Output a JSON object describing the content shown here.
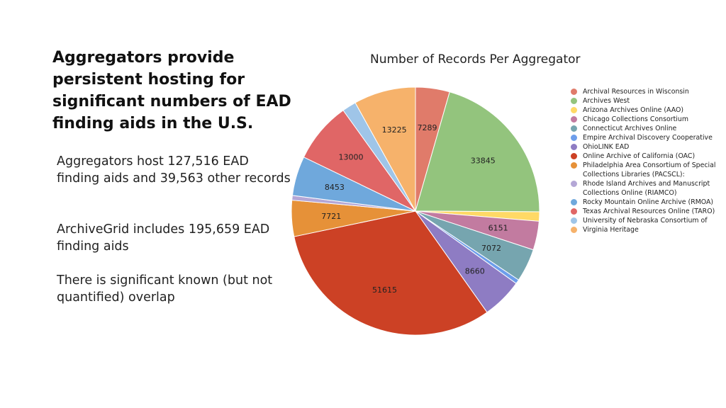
{
  "slide": {
    "title": "Aggregators provide persistent hosting for significant numbers of EAD finding aids in the U.S.",
    "paragraphs": [
      "Aggregators host 127,516 EAD finding aids and 39,563 other records",
      "ArchiveGrid includes 195,659 EAD finding aids",
      "There is significant known (but not quantified) overlap"
    ]
  },
  "chart_data": {
    "type": "pie",
    "title": "Number of Records Per Aggregator",
    "start_angle_deg": 0,
    "direction": "clockwise",
    "legend_position": "right",
    "slices": [
      {
        "label": "Archival Resources in Wisconsin",
        "value": 7289,
        "color": "#e07b6a"
      },
      {
        "label": "Archives West",
        "value": 33845,
        "color": "#93c47d"
      },
      {
        "label": "Arizona Archives Online (AAO)",
        "value": 2000,
        "color": "#ffd966"
      },
      {
        "label": "Chicago Collections Consortium",
        "value": 6151,
        "color": "#c27ba0"
      },
      {
        "label": "Connecticut Archives Online",
        "value": 7072,
        "color": "#76a5af"
      },
      {
        "label": "Empire Archival Discovery Cooperative",
        "value": 900,
        "color": "#6d9eeb"
      },
      {
        "label": "OhioLINK EAD",
        "value": 8660,
        "color": "#8e7cc3"
      },
      {
        "label": "Online Archive of California (OAC)",
        "value": 51615,
        "color": "#cc4125"
      },
      {
        "label": "Philadelphia Area Consortium of Special Collections Libraries (PACSCL):",
        "value": 7721,
        "color": "#e69138"
      },
      {
        "label": "Rhode Island Archives and Manuscript Collections Online (RIAMCO)",
        "value": 1000,
        "color": "#b4a7d6"
      },
      {
        "label": "Rocky Mountain Online Archive (RMOA)",
        "value": 8453,
        "color": "#6fa8dc"
      },
      {
        "label": "Texas Archival Resources Online (TARO)",
        "value": 13000,
        "color": "#e06666"
      },
      {
        "label": "University of Nebraska Consortium of",
        "value": 3000,
        "color": "#9fc5e8"
      },
      {
        "label": "Virginia Heritage",
        "value": 13225,
        "color": "#f6b26b"
      }
    ],
    "data_labels": [
      "7289",
      "33845",
      "",
      "6151",
      "7072",
      "",
      "8660",
      "51615",
      "7721",
      "",
      "8453",
      "13000",
      "",
      "13225"
    ]
  }
}
